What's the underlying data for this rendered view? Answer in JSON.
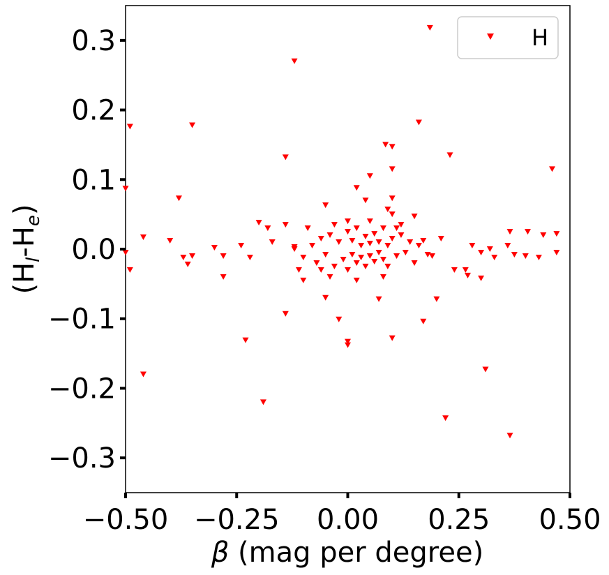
{
  "chart_data": {
    "type": "scatter",
    "title": "",
    "xlabel_symbol": "β",
    "xlabel_rest": " (mag per degree)",
    "ylabel_main": "(H",
    "ylabel_sub1": "l",
    "ylabel_mid": "-H",
    "ylabel_sub2": "e",
    "ylabel_end": ")",
    "xlim": [
      -0.5,
      0.5
    ],
    "ylim": [
      -0.35,
      0.35
    ],
    "xticks": [
      -0.5,
      -0.25,
      0.0,
      0.25,
      0.5
    ],
    "xtick_labels": [
      "−0.50",
      "−0.25",
      "0.00",
      "0.25",
      "0.50"
    ],
    "yticks": [
      -0.3,
      -0.2,
      -0.1,
      0.0,
      0.1,
      0.2,
      0.3
    ],
    "ytick_labels": [
      "−0.3",
      "−0.2",
      "−0.1",
      "0.0",
      "0.1",
      "0.2",
      "0.3"
    ],
    "grid": false,
    "legend": {
      "position": "top-right",
      "entries": [
        "H"
      ]
    },
    "marker": "triangle-down",
    "color": "#ff0000",
    "series": [
      {
        "name": "H",
        "points": [
          [
            0.185,
            0.318
          ],
          [
            -0.12,
            0.27
          ],
          [
            0.16,
            0.182
          ],
          [
            -0.35,
            0.178
          ],
          [
            -0.49,
            0.176
          ],
          [
            0.085,
            0.15
          ],
          [
            0.1,
            0.147
          ],
          [
            0.23,
            0.135
          ],
          [
            -0.14,
            0.132
          ],
          [
            0.1,
            0.115
          ],
          [
            0.46,
            0.115
          ],
          [
            0.05,
            0.105
          ],
          [
            -0.5,
            0.087
          ],
          [
            0.02,
            0.088
          ],
          [
            -0.38,
            0.073
          ],
          [
            0.04,
            0.07
          ],
          [
            0.1,
            0.073
          ],
          [
            -0.05,
            0.063
          ],
          [
            0.09,
            0.057
          ],
          [
            0.1,
            0.05
          ],
          [
            0.15,
            0.047
          ],
          [
            -0.2,
            0.038
          ],
          [
            -0.14,
            0.035
          ],
          [
            -0.18,
            0.03
          ],
          [
            0.365,
            0.025
          ],
          [
            0.405,
            0.025
          ],
          [
            0.47,
            0.022
          ],
          [
            0.44,
            0.02
          ],
          [
            -0.46,
            0.017
          ],
          [
            -0.4,
            0.012
          ],
          [
            -0.24,
            0.005
          ],
          [
            -0.12,
            0.003
          ],
          [
            0.21,
            0.015
          ],
          [
            0.28,
            0.005
          ],
          [
            0.3,
            -0.005
          ],
          [
            0.32,
            0.0
          ],
          [
            -0.5,
            -0.005
          ],
          [
            -0.35,
            -0.01
          ],
          [
            -0.28,
            -0.01
          ],
          [
            -0.22,
            -0.012
          ],
          [
            0.33,
            -0.012
          ],
          [
            0.4,
            -0.01
          ],
          [
            0.47,
            -0.005
          ],
          [
            -0.36,
            -0.022
          ],
          [
            -0.37,
            -0.012
          ],
          [
            -0.49,
            -0.03
          ],
          [
            0.375,
            -0.008
          ],
          [
            0.43,
            -0.012
          ],
          [
            -0.28,
            -0.04
          ],
          [
            0.27,
            -0.038
          ],
          [
            0.3,
            -0.042
          ],
          [
            0.24,
            -0.03
          ],
          [
            -0.1,
            -0.045
          ],
          [
            -0.14,
            -0.093
          ],
          [
            0.2,
            -0.072
          ],
          [
            -0.05,
            -0.07
          ],
          [
            0.07,
            -0.072
          ],
          [
            -0.02,
            -0.101
          ],
          [
            0.17,
            -0.104
          ],
          [
            0.0,
            -0.133
          ],
          [
            0.1,
            -0.128
          ],
          [
            0.0,
            -0.138
          ],
          [
            -0.23,
            -0.131
          ],
          [
            0.31,
            -0.173
          ],
          [
            -0.46,
            -0.18
          ],
          [
            -0.19,
            -0.22
          ],
          [
            0.22,
            -0.243
          ],
          [
            0.365,
            -0.268
          ],
          [
            0.36,
            0.005
          ],
          [
            0.265,
            -0.03
          ],
          [
            -0.3,
            0.002
          ],
          [
            -0.17,
            0.01
          ],
          [
            0.19,
            -0.01
          ],
          [
            -0.12,
            0.0
          ],
          [
            -0.1,
            -0.012
          ],
          [
            -0.08,
            0.005
          ],
          [
            -0.07,
            -0.02
          ],
          [
            -0.06,
            0.015
          ],
          [
            -0.05,
            -0.008
          ],
          [
            -0.04,
            0.02
          ],
          [
            -0.03,
            -0.025
          ],
          [
            -0.02,
            0.01
          ],
          [
            -0.01,
            -0.015
          ],
          [
            0.0,
            0.025
          ],
          [
            0.0,
            -0.03
          ],
          [
            0.01,
            0.012
          ],
          [
            0.01,
            -0.008
          ],
          [
            0.02,
            0.03
          ],
          [
            0.02,
            -0.02
          ],
          [
            0.03,
            0.005
          ],
          [
            0.03,
            -0.012
          ],
          [
            0.04,
            0.018
          ],
          [
            0.04,
            -0.025
          ],
          [
            0.05,
            0.008
          ],
          [
            0.05,
            -0.01
          ],
          [
            0.06,
            0.022
          ],
          [
            0.06,
            -0.018
          ],
          [
            0.07,
            0.01
          ],
          [
            0.07,
            -0.005
          ],
          [
            0.08,
            0.03
          ],
          [
            0.08,
            -0.015
          ],
          [
            0.09,
            0.005
          ],
          [
            0.09,
            -0.025
          ],
          [
            0.1,
            0.015
          ],
          [
            0.11,
            -0.01
          ],
          [
            0.12,
            0.02
          ],
          [
            0.13,
            -0.005
          ],
          [
            0.14,
            0.01
          ],
          [
            0.15,
            -0.02
          ],
          [
            0.16,
            0.005
          ],
          [
            0.17,
            0.012
          ],
          [
            0.18,
            -0.008
          ],
          [
            -0.09,
            0.03
          ],
          [
            -0.11,
            -0.03
          ],
          [
            0.0,
            0.04
          ],
          [
            0.05,
            0.04
          ],
          [
            -0.03,
            0.035
          ],
          [
            0.12,
            0.035
          ],
          [
            0.08,
            -0.04
          ],
          [
            -0.04,
            -0.04
          ],
          [
            0.02,
            -0.045
          ],
          [
            0.11,
            0.03
          ],
          [
            -0.06,
            -0.03
          ]
        ]
      }
    ]
  }
}
